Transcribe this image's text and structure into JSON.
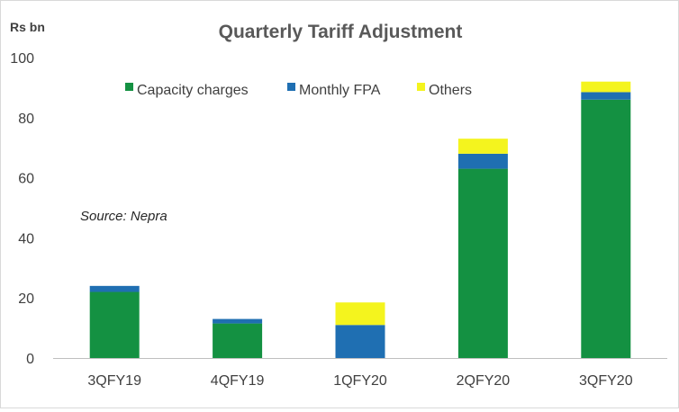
{
  "chart_data": {
    "type": "bar",
    "stacked": true,
    "title": "Quarterly Tariff Adjustment",
    "ylabel": "Rs bn",
    "xlabel": "",
    "annotation": "Source: Nepra",
    "categories": [
      "3QFY19",
      "4QFY19",
      "1QFY20",
      "2QFY20",
      "3QFY20"
    ],
    "series": [
      {
        "name": "Capacity charges",
        "color": "#149142",
        "values": [
          22,
          11.5,
          0,
          63,
          86
        ]
      },
      {
        "name": "Monthly FPA",
        "color": "#1f6fb2",
        "values": [
          2,
          1.5,
          11,
          5,
          2.5
        ]
      },
      {
        "name": "Others",
        "color": "#f4f41e",
        "values": [
          0,
          0,
          7.5,
          5,
          3.5
        ]
      }
    ],
    "ylim": [
      0,
      100
    ],
    "yticks": [
      0,
      20,
      40,
      60,
      80,
      100
    ],
    "grid": false,
    "legend_position": "top-center"
  }
}
